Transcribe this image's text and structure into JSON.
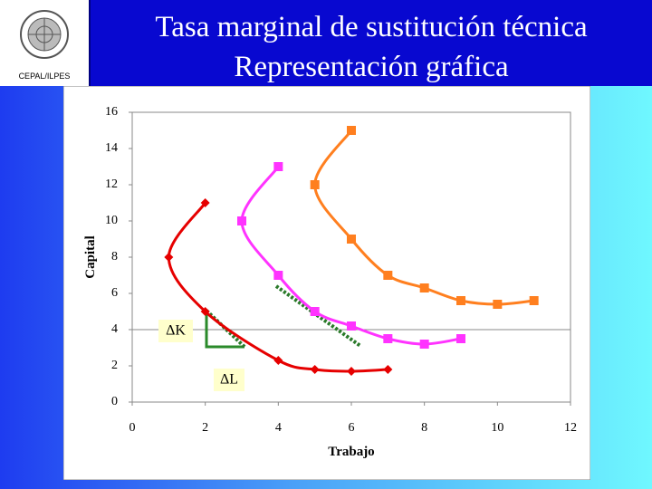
{
  "header": {
    "logo_caption": "CEPAL/ILPES"
  },
  "chart_data": {
    "type": "line",
    "title": "Tasa marginal de sustitución técnica",
    "subtitle": "Representación gráfica",
    "x_label": "Trabajo",
    "y_label": "Capital",
    "xlim": [
      0,
      12
    ],
    "xticks": [
      0,
      2,
      4,
      6,
      8,
      10,
      12
    ],
    "ylim": [
      0,
      16
    ],
    "yticks": [
      0,
      2,
      4,
      6,
      8,
      10,
      12,
      14,
      16
    ],
    "series": [
      {
        "color": "#e60000",
        "marker": "diamond",
        "x": [
          2,
          1,
          2,
          4,
          5,
          6,
          7
        ],
        "values": [
          11,
          8,
          5,
          2.3,
          1.8,
          1.7,
          1.8
        ]
      },
      {
        "color": "#ff33ff",
        "marker": "square",
        "x": [
          4,
          3,
          4,
          5,
          6,
          7,
          8,
          9
        ],
        "values": [
          13,
          10,
          7,
          5,
          4.2,
          3.5,
          3.2,
          3.5
        ]
      },
      {
        "color": "#ff7f1f",
        "marker": "square",
        "x": [
          6,
          5,
          6,
          7,
          8,
          9,
          10,
          11
        ],
        "values": [
          15,
          12,
          9,
          7,
          6.3,
          5.6,
          5.4,
          5.6
        ]
      }
    ],
    "annotations": [
      "ΔK",
      "ΔL"
    ]
  }
}
